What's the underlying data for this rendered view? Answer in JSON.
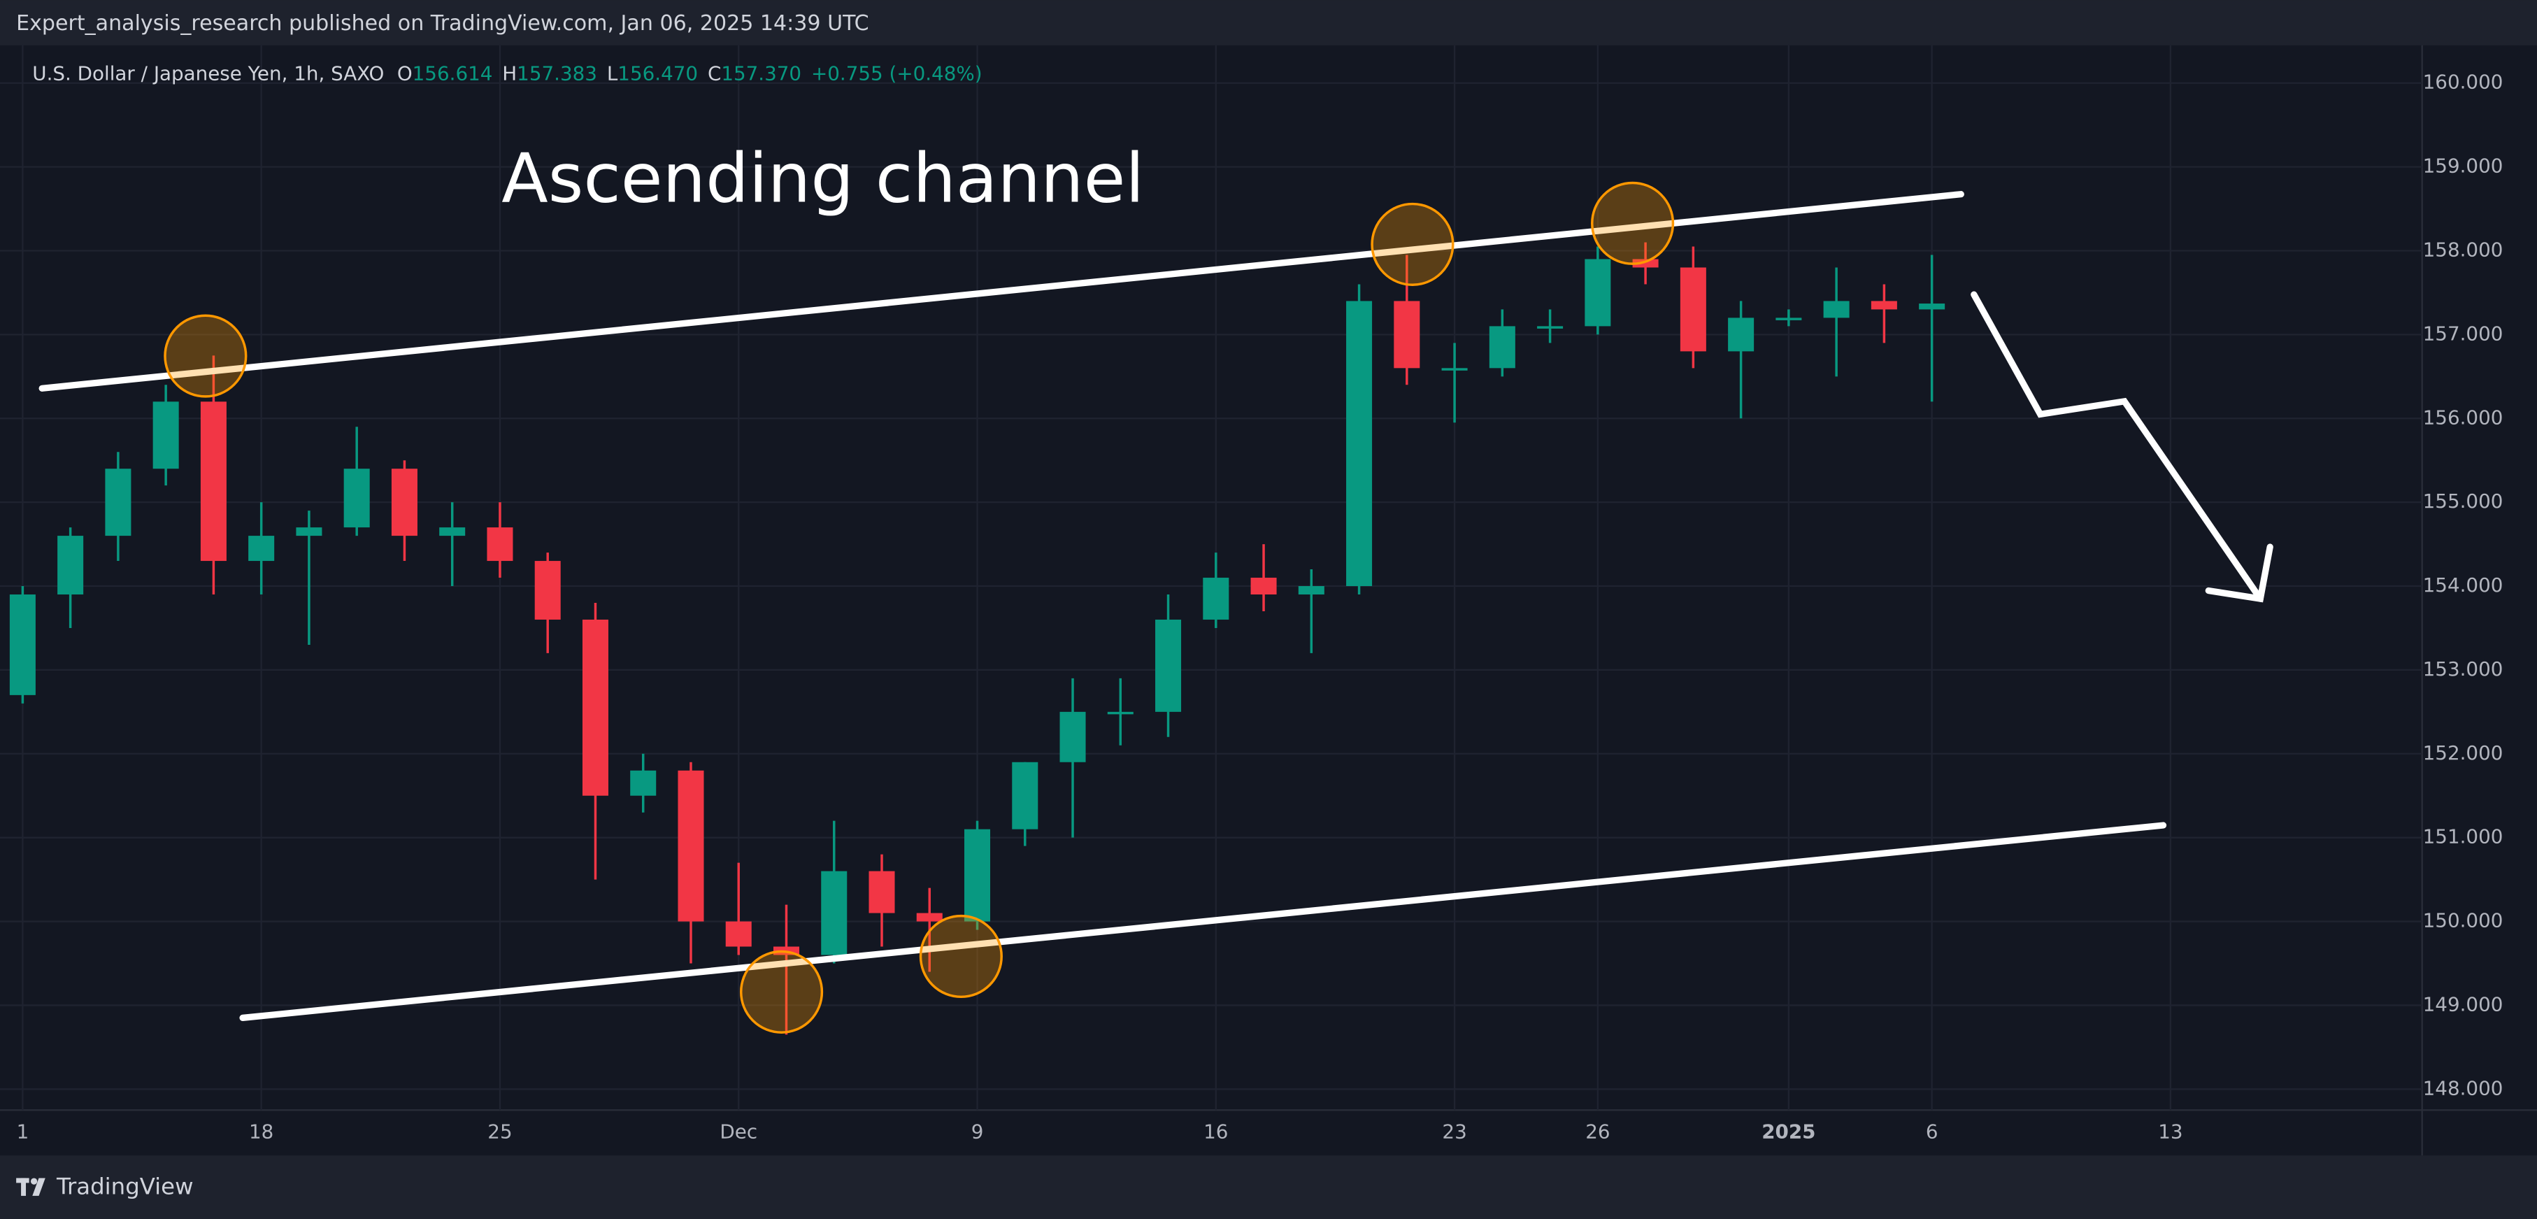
{
  "header": {
    "text": "Expert_analysis_research published on TradingView.com, Jan 06, 2025 14:39 UTC"
  },
  "legend": {
    "symbol": "U.S. Dollar / Japanese Yen, 1h, SAXO",
    "o_label": "O",
    "o": "156.614",
    "h_label": "H",
    "h": "157.383",
    "l_label": "L",
    "l": "156.470",
    "c_label": "C",
    "c": "157.370",
    "change": "+0.755 (+0.48%)"
  },
  "annotation": "Ascending channel",
  "footer": {
    "brand": "TradingView"
  },
  "chart_data": {
    "type": "candlestick",
    "categories": [
      "1",
      null,
      null,
      null,
      null,
      "18",
      null,
      null,
      null,
      null,
      "25",
      null,
      null,
      null,
      null,
      "Dec",
      null,
      null,
      null,
      null,
      "9",
      null,
      null,
      null,
      null,
      "16",
      null,
      null,
      null,
      null,
      "23",
      null,
      null,
      "26",
      null,
      null,
      null,
      "2025",
      null,
      null,
      "6",
      null,
      null,
      null,
      null,
      "13",
      null,
      null,
      null,
      null
    ],
    "open": [
      152.7,
      153.9,
      154.6,
      155.4,
      156.2,
      154.3,
      154.6,
      154.7,
      155.4,
      154.6,
      154.7,
      154.3,
      153.6,
      151.5,
      151.8,
      150.0,
      149.7,
      149.6,
      150.6,
      150.1,
      150.0,
      151.1,
      151.9,
      152.5,
      152.5,
      153.6,
      154.1,
      153.9,
      154.0,
      157.4,
      156.6,
      156.6,
      157.1,
      157.1,
      157.9,
      157.8,
      156.8,
      157.2,
      157.2,
      157.4,
      157.3,
      null,
      null,
      null,
      null,
      null,
      null,
      null,
      null,
      null
    ],
    "high": [
      154.0,
      154.7,
      155.6,
      156.4,
      156.75,
      155.0,
      154.9,
      155.9,
      155.5,
      155.0,
      155.0,
      154.4,
      153.8,
      152.0,
      151.9,
      150.7,
      150.2,
      151.2,
      150.8,
      150.4,
      151.2,
      151.9,
      152.9,
      152.9,
      153.9,
      154.4,
      154.5,
      154.2,
      157.6,
      157.95,
      156.9,
      157.3,
      157.3,
      158.05,
      158.1,
      158.05,
      157.4,
      157.3,
      157.8,
      157.6,
      157.95,
      null,
      null,
      null,
      null,
      null,
      null,
      null,
      null,
      null
    ],
    "low": [
      152.6,
      153.5,
      154.3,
      155.2,
      153.9,
      153.9,
      153.3,
      154.6,
      154.3,
      154.0,
      154.1,
      153.2,
      150.5,
      151.3,
      149.5,
      149.6,
      148.65,
      149.5,
      149.7,
      149.4,
      149.9,
      150.9,
      151.0,
      152.1,
      152.2,
      153.5,
      153.7,
      153.2,
      153.9,
      156.4,
      155.95,
      156.5,
      156.9,
      157.0,
      157.6,
      156.6,
      156.0,
      157.1,
      156.5,
      156.9,
      156.2,
      null,
      null,
      null,
      null,
      null,
      null,
      null,
      null,
      null
    ],
    "close": [
      153.9,
      154.6,
      155.4,
      156.2,
      154.3,
      154.6,
      154.7,
      155.4,
      154.6,
      154.7,
      154.3,
      153.6,
      151.5,
      151.8,
      150.0,
      149.7,
      149.6,
      150.6,
      150.1,
      150.0,
      151.1,
      151.9,
      152.5,
      152.5,
      153.6,
      154.1,
      153.9,
      154.0,
      157.4,
      156.6,
      156.6,
      157.1,
      157.1,
      157.9,
      157.8,
      156.8,
      157.2,
      157.2,
      157.4,
      157.3,
      157.37,
      null,
      null,
      null,
      null,
      null,
      null,
      null,
      null,
      null
    ],
    "up_color": "#089981",
    "down_color": "#f23645",
    "ylim": [
      147.75,
      160.45
    ],
    "yticks": [
      {
        "value": 148,
        "label": "148.000"
      },
      {
        "value": 149,
        "label": "149.000"
      },
      {
        "value": 150,
        "label": "150.000"
      },
      {
        "value": 151,
        "label": "151.000"
      },
      {
        "value": 152,
        "label": "152.000"
      },
      {
        "value": 153,
        "label": "153.000"
      },
      {
        "value": 154,
        "label": "154.000"
      },
      {
        "value": 155,
        "label": "155.000"
      },
      {
        "value": 156,
        "label": "156.000"
      },
      {
        "value": 157,
        "label": "157.000"
      },
      {
        "value": 158,
        "label": "158.000"
      },
      {
        "value": 159,
        "label": "159.000"
      },
      {
        "value": 160,
        "label": "160.000"
      }
    ],
    "grid": true
  }
}
